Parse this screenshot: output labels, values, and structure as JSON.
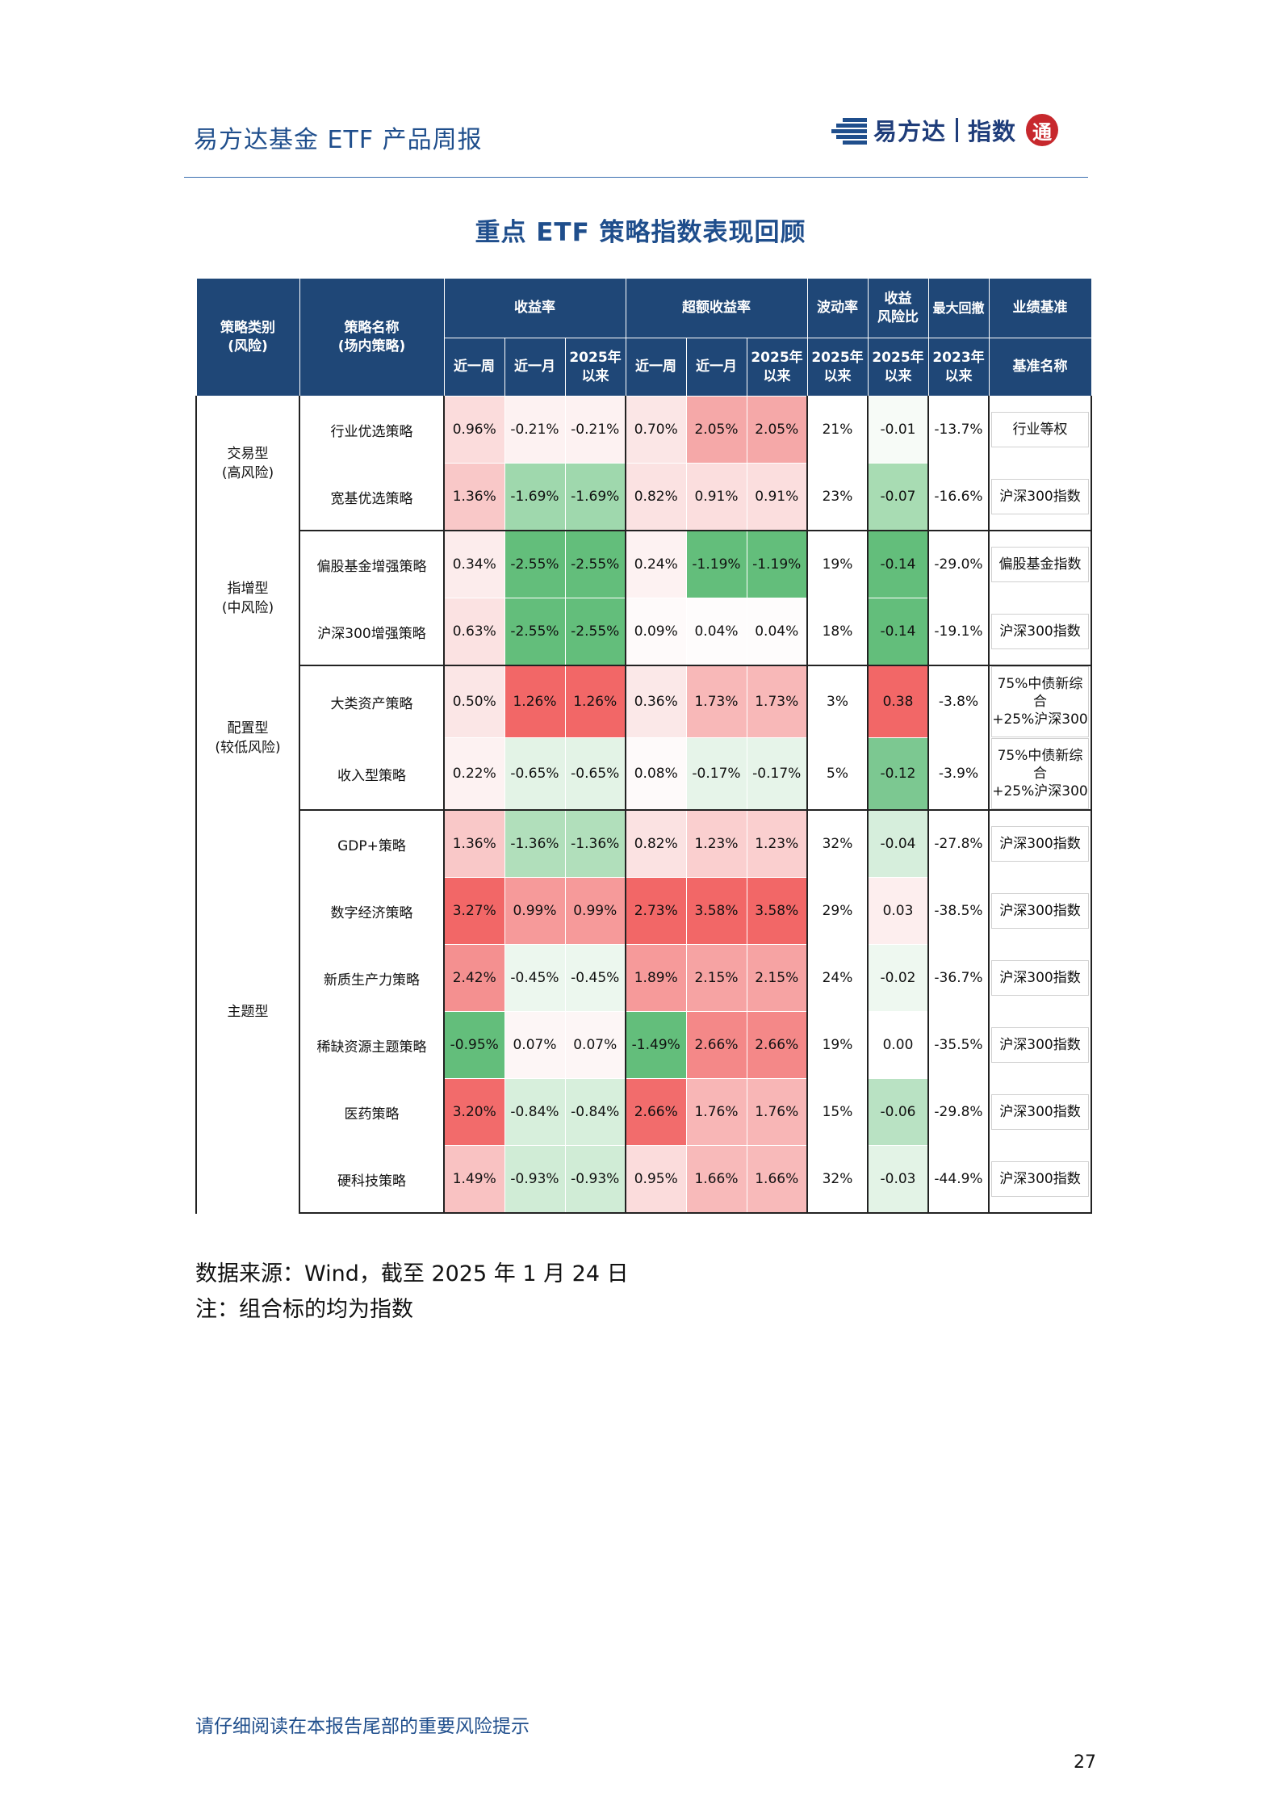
{
  "header": {
    "title": "易方达基金 ETF 产品周报",
    "logo": {
      "brand": "易方达",
      "product": "指数",
      "seal": "通"
    }
  },
  "page_heading": "重点 ETF 策略指数表现回顾",
  "table": {
    "group_headers": {
      "category": "策略类别\n(风险)",
      "name": "策略名称\n(场内策略)",
      "returns": "收益率",
      "excess": "超额收益率",
      "vol": "波动率",
      "ratio": "收益\n风险比",
      "dd": "最大回撤",
      "bench": "业绩基准"
    },
    "sub_headers": {
      "returns": [
        "近一周",
        "近一月",
        "2025年\n以来"
      ],
      "excess": [
        "近一周",
        "近一月",
        "2025年\n以来"
      ],
      "vol": "2025年\n以来",
      "ratio": "2025年\n以来",
      "dd": "2023年\n以来",
      "bench": "基准名称"
    },
    "groups": [
      {
        "category": "交易型\n(高风险)",
        "rows": [
          {
            "name": "行业优选策略",
            "ret": [
              "0.96%",
              "-0.21%",
              "-0.21%"
            ],
            "ret_bg": [
              "#fbdcdc",
              "#fdf2f2",
              "#fdf2f2"
            ],
            "exc": [
              "0.70%",
              "2.05%",
              "2.05%"
            ],
            "exc_bg": [
              "#fbe6e6",
              "#f5a8a8",
              "#f5a8a8"
            ],
            "vol": "21%",
            "ratio": "-0.01",
            "ratio_bg": "#f7fbf7",
            "dd": "-13.7%",
            "bench": "行业等权"
          },
          {
            "name": "宽基优选策略",
            "ret": [
              "1.36%",
              "-1.69%",
              "-1.69%"
            ],
            "ret_bg": [
              "#f9c8c8",
              "#9fd8ad",
              "#9fd8ad"
            ],
            "exc": [
              "0.82%",
              "0.91%",
              "0.91%"
            ],
            "exc_bg": [
              "#fbe2e2",
              "#fbdede",
              "#fbdede"
            ],
            "vol": "23%",
            "ratio": "-0.07",
            "ratio_bg": "#a8dcb3",
            "dd": "-16.6%",
            "bench": "沪深300指数"
          }
        ]
      },
      {
        "category": "指增型\n(中风险)",
        "rows": [
          {
            "name": "偏股基金增强策略",
            "ret": [
              "0.34%",
              "-2.55%",
              "-2.55%"
            ],
            "ret_bg": [
              "#fcecec",
              "#63be7b",
              "#63be7b"
            ],
            "exc": [
              "0.24%",
              "-1.19%",
              "-1.19%"
            ],
            "exc_bg": [
              "#fdf2f2",
              "#63be7b",
              "#63be7b"
            ],
            "vol": "19%",
            "ratio": "-0.14",
            "ratio_bg": "#63be7b",
            "dd": "-29.0%",
            "bench": "偏股基金指数"
          },
          {
            "name": "沪深300增强策略",
            "ret": [
              "0.63%",
              "-2.55%",
              "-2.55%"
            ],
            "ret_bg": [
              "#fbe2e2",
              "#63be7b",
              "#63be7b"
            ],
            "exc": [
              "0.09%",
              "0.04%",
              "0.04%"
            ],
            "exc_bg": [
              "#fefafa",
              "#fefcfc",
              "#fefcfc"
            ],
            "vol": "18%",
            "ratio": "-0.14",
            "ratio_bg": "#63be7b",
            "dd": "-19.1%",
            "bench": "沪深300指数"
          }
        ]
      },
      {
        "category": "配置型\n(较低风险)",
        "rows": [
          {
            "name": "大类资产策略",
            "ret": [
              "0.50%",
              "1.26%",
              "1.26%"
            ],
            "ret_bg": [
              "#fbe6e6",
              "#f26767",
              "#f26767"
            ],
            "exc": [
              "0.36%",
              "1.73%",
              "1.73%"
            ],
            "exc_bg": [
              "#fbe8e8",
              "#f8b8b8",
              "#f8b8b8"
            ],
            "vol": "3%",
            "ratio": "0.38",
            "ratio_bg": "#f26767",
            "dd": "-3.8%",
            "bench": "75%中债新综合\n+25%沪深300"
          },
          {
            "name": "收入型策略",
            "ret": [
              "0.22%",
              "-0.65%",
              "-0.65%"
            ],
            "ret_bg": [
              "#fdf2f2",
              "#e3f3e6",
              "#e3f3e6"
            ],
            "exc": [
              "0.08%",
              "-0.17%",
              "-0.17%"
            ],
            "exc_bg": [
              "#fefafa",
              "#e6f4e9",
              "#e6f4e9"
            ],
            "vol": "5%",
            "ratio": "-0.12",
            "ratio_bg": "#7cc891",
            "dd": "-3.9%",
            "bench": "75%中债新综合\n+25%沪深300"
          }
        ]
      },
      {
        "category": "主题型",
        "rows": [
          {
            "name": "GDP+策略",
            "ret": [
              "1.36%",
              "-1.36%",
              "-1.36%"
            ],
            "ret_bg": [
              "#f9c8c8",
              "#b1dfbb",
              "#b1dfbb"
            ],
            "exc": [
              "0.82%",
              "1.23%",
              "1.23%"
            ],
            "exc_bg": [
              "#fbe2e2",
              "#facfcf",
              "#facfcf"
            ],
            "vol": "32%",
            "ratio": "-0.04",
            "ratio_bg": "#d6eedc",
            "dd": "-27.8%",
            "bench": "沪深300指数"
          },
          {
            "name": "数字经济策略",
            "ret": [
              "3.27%",
              "0.99%",
              "0.99%"
            ],
            "ret_bg": [
              "#f26767",
              "#f69a9a",
              "#f69a9a"
            ],
            "exc": [
              "2.73%",
              "3.58%",
              "3.58%"
            ],
            "exc_bg": [
              "#f26767",
              "#f26767",
              "#f26767"
            ],
            "vol": "29%",
            "ratio": "0.03",
            "ratio_bg": "#fdeeee",
            "dd": "-38.5%",
            "bench": "沪深300指数"
          },
          {
            "name": "新质生产力策略",
            "ret": [
              "2.42%",
              "-0.45%",
              "-0.45%"
            ],
            "ret_bg": [
              "#f49090",
              "#ecf7ee",
              "#ecf7ee"
            ],
            "exc": [
              "1.89%",
              "2.15%",
              "2.15%"
            ],
            "exc_bg": [
              "#f69a9a",
              "#f6a3a3",
              "#f6a3a3"
            ],
            "vol": "24%",
            "ratio": "-0.02",
            "ratio_bg": "#eef8f0",
            "dd": "-36.7%",
            "bench": "沪深300指数"
          },
          {
            "name": "稀缺资源主题策略",
            "ret": [
              "-0.95%",
              "0.07%",
              "0.07%"
            ],
            "ret_bg": [
              "#63be7b",
              "#fdf6f6",
              "#fdf6f6"
            ],
            "exc": [
              "-1.49%",
              "2.66%",
              "2.66%"
            ],
            "exc_bg": [
              "#63be7b",
              "#f48888",
              "#f48888"
            ],
            "vol": "19%",
            "ratio": "0.00",
            "ratio_bg": "#ffffff",
            "dd": "-35.5%",
            "bench": "沪深300指数"
          },
          {
            "name": "医药策略",
            "ret": [
              "3.20%",
              "-0.84%",
              "-0.84%"
            ],
            "ret_bg": [
              "#f26b6b",
              "#d7efdc",
              "#d7efdc"
            ],
            "exc": [
              "2.66%",
              "1.76%",
              "1.76%"
            ],
            "exc_bg": [
              "#f26c6c",
              "#f8b6b6",
              "#f8b6b6"
            ],
            "vol": "15%",
            "ratio": "-0.06",
            "ratio_bg": "#b9e2c3",
            "dd": "-29.8%",
            "bench": "沪深300指数"
          },
          {
            "name": "硬科技策略",
            "ret": [
              "1.49%",
              "-0.93%",
              "-0.93%"
            ],
            "ret_bg": [
              "#f9c2c2",
              "#d0ecd6",
              "#d0ecd6"
            ],
            "exc": [
              "0.95%",
              "1.66%",
              "1.66%"
            ],
            "exc_bg": [
              "#fbdcdc",
              "#f8baba",
              "#f8baba"
            ],
            "vol": "32%",
            "ratio": "-0.03",
            "ratio_bg": "#e3f3e6",
            "dd": "-44.9%",
            "bench": "沪深300指数"
          }
        ]
      }
    ]
  },
  "notes": {
    "source": "数据来源：Wind，截至 2025 年 1 月 24 日",
    "note": "注：组合标的均为指数"
  },
  "footer": {
    "warning": "请仔细阅读在本报告尾部的重要风险提示",
    "page_number": "27"
  }
}
